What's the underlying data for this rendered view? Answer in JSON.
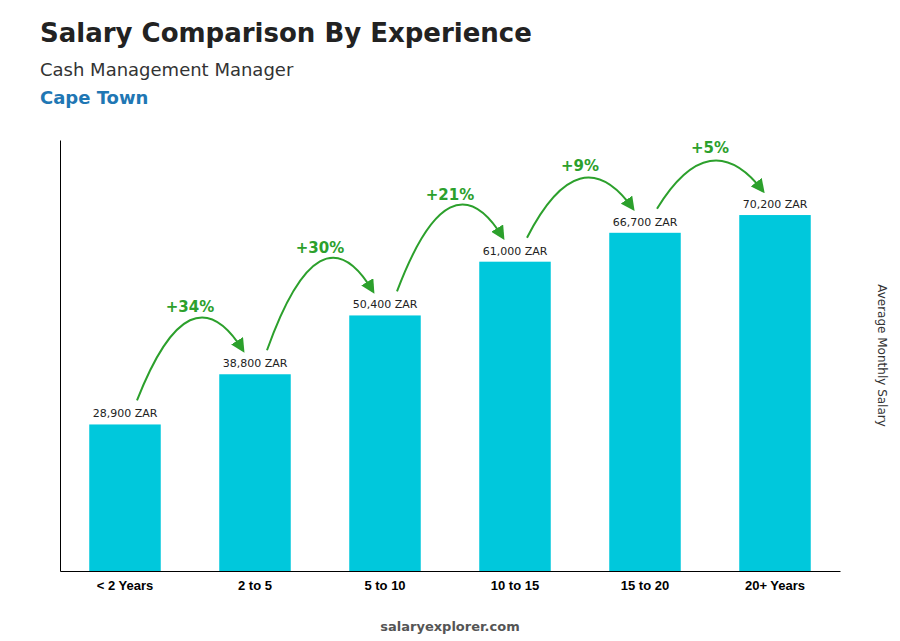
{
  "chart_data": {
    "type": "bar",
    "title": "Salary Comparison By Experience",
    "subtitle": "Cash Management Manager",
    "annotations": [
      "Cape Town",
      "salaryexplorer.com"
    ],
    "ylabel": "Average Monthly Salary",
    "categories": [
      "< 2 Years",
      "2 to 5",
      "5 to 10",
      "10 to 15",
      "15 to 20",
      "20+ Years"
    ],
    "values": [
      28900,
      38800,
      50400,
      61000,
      66700,
      70200
    ],
    "value_labels": [
      "28,900 ZAR",
      "38,800 ZAR",
      "50,400 ZAR",
      "61,000 ZAR",
      "66,700 ZAR",
      "70,200 ZAR"
    ],
    "data_labels": true,
    "change_labels": [
      "+34%",
      "+30%",
      "+21%",
      "+9%",
      "+5%"
    ],
    "color": "#00c8dc",
    "ylim": [
      0,
      85000
    ],
    "grid": false,
    "tick_labels": "x"
  }
}
